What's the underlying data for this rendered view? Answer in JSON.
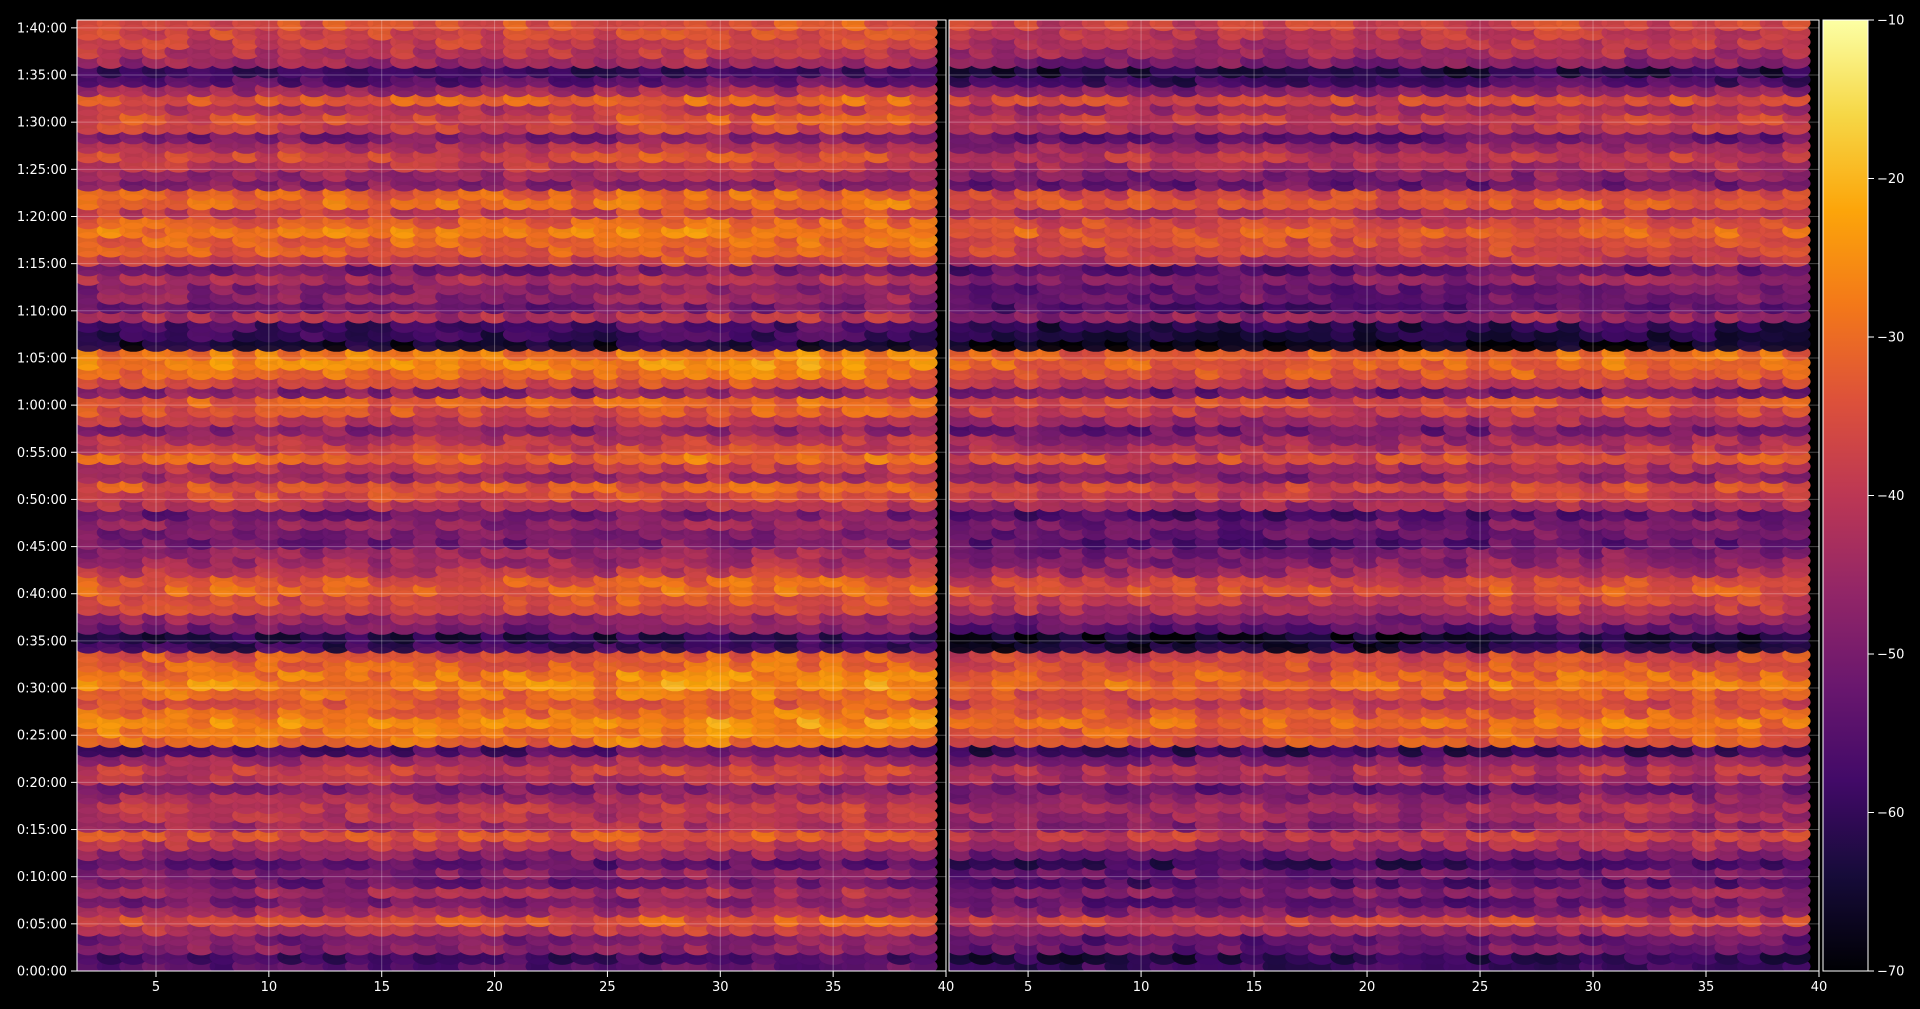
{
  "chart_data": {
    "type": "heatmap",
    "title": "",
    "xlabel": "",
    "ylabel": "",
    "panels": [
      {
        "name": "",
        "xlim": [
          1.5,
          40
        ],
        "x_ticks": [
          5,
          10,
          15,
          20,
          25,
          30,
          35,
          40
        ],
        "x_tick_labels": [
          "5",
          "10",
          "15",
          "20",
          "25",
          "30",
          "35",
          "40"
        ]
      },
      {
        "name": "",
        "xlim": [
          1.5,
          40
        ],
        "x_ticks": [
          5,
          10,
          15,
          20,
          25,
          30,
          35,
          40
        ],
        "x_tick_labels": [
          "5",
          "10",
          "15",
          "20",
          "25",
          "30",
          "35",
          "40"
        ]
      }
    ],
    "ylim_seconds": [
      0,
      6050
    ],
    "y_ticks": [
      0,
      300,
      600,
      900,
      1200,
      1500,
      1800,
      2100,
      2400,
      2700,
      3000,
      3300,
      3600,
      3900,
      4200,
      4500,
      4800,
      5100,
      5400,
      5700,
      6000
    ],
    "y_tick_labels": [
      "0:00:00",
      "0:05:00",
      "0:10:00",
      "0:15:00",
      "0:20:00",
      "0:25:00",
      "0:30:00",
      "0:35:00",
      "0:40:00",
      "0:45:00",
      "0:50:00",
      "0:55:00",
      "1:00:00",
      "1:05:00",
      "1:10:00",
      "1:15:00",
      "1:20:00",
      "1:25:00",
      "1:30:00",
      "1:35:00",
      "1:40:00"
    ],
    "row_times_seconds": [
      30,
      90,
      150,
      210,
      270,
      330,
      390,
      450,
      510,
      570,
      630,
      690,
      750,
      810,
      870,
      930,
      990,
      1050,
      1110,
      1170,
      1230,
      1290,
      1350,
      1410,
      1470,
      1530,
      1590,
      1650,
      1710,
      1770,
      1830,
      1890,
      1950,
      2010,
      2070,
      2130,
      2190,
      2250,
      2310,
      2370,
      2430,
      2490,
      2550,
      2610,
      2670,
      2730,
      2790,
      2850,
      2910,
      2970,
      3030,
      3090,
      3150,
      3210,
      3270,
      3330,
      3390,
      3450,
      3510,
      3570,
      3630,
      3690,
      3750,
      3810,
      3870,
      3930,
      3990,
      4050,
      4110,
      4170,
      4230,
      4290,
      4350,
      4410,
      4470,
      4530,
      4590,
      4650,
      4710,
      4770,
      4830,
      4890,
      4950,
      5010,
      5070,
      5130,
      5190,
      5250,
      5310,
      5370,
      5430,
      5490,
      5550,
      5610,
      5670,
      5730,
      5790,
      5850,
      5910,
      5970,
      6030
    ],
    "row_base_db": [
      -55,
      -58,
      -48,
      -50,
      -40,
      -34,
      -45,
      -50,
      -44,
      -52,
      -48,
      -55,
      -47,
      -40,
      -34,
      -44,
      -41,
      -40,
      -44,
      -49,
      -40,
      -38,
      -45,
      -56,
      -30,
      -28,
      -26,
      -30,
      -34,
      -30,
      -26,
      -28,
      -31,
      -33,
      -60,
      -62,
      -50,
      -46,
      -37,
      -35,
      -31,
      -33,
      -41,
      -44,
      -46,
      -51,
      -49,
      -47,
      -52,
      -41,
      -36,
      -33,
      -45,
      -40,
      -31,
      -38,
      -41,
      -48,
      -40,
      -34,
      -32,
      -48,
      -36,
      -30,
      -27,
      -28,
      -65,
      -60,
      -58,
      -42,
      -52,
      -47,
      -49,
      -43,
      -51,
      -37,
      -33,
      -31,
      -28,
      -32,
      -38,
      -30,
      -32,
      -48,
      -45,
      -40,
      -36,
      -42,
      -50,
      -38,
      -35,
      -41,
      -32,
      -45,
      -55,
      -60,
      -45,
      -40,
      -38,
      -36,
      -34
    ],
    "panel_offset_db": [
      0,
      -4
    ],
    "colorbar": {
      "min": -70,
      "max": -10,
      "ticks": [
        -10,
        -20,
        -30,
        -40,
        -50,
        -60,
        -70
      ],
      "tick_labels": [
        "−10",
        "−20",
        "−30",
        "−40",
        "−50",
        "−60",
        "−70"
      ],
      "colormap": "inferno"
    },
    "grid": true,
    "colors": {
      "background": "#000000",
      "axis": "#ffffff",
      "grid": "#ffffff"
    }
  }
}
